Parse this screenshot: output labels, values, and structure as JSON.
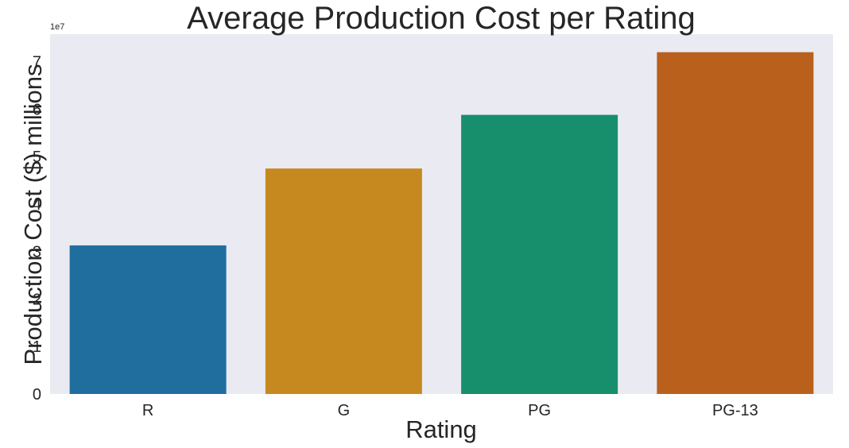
{
  "chart_data": {
    "type": "bar",
    "title": "Average Production Cost per Rating",
    "xlabel": "Rating",
    "ylabel": "Production Cost ($) millions",
    "categories": [
      "R",
      "G",
      "PG",
      "PG-13"
    ],
    "values": [
      31300000,
      47500000,
      58800000,
      72000000
    ],
    "ylim": [
      0,
      75800000
    ],
    "yticks": [
      0,
      1,
      2,
      3,
      4,
      5,
      6,
      7
    ],
    "y_offset_label": "1e7",
    "grid": false,
    "legend": "none",
    "colors": [
      "#1f6e9e",
      "#c5891f",
      "#178e6c",
      "#b9611c"
    ],
    "background": "#eaeaf2"
  }
}
